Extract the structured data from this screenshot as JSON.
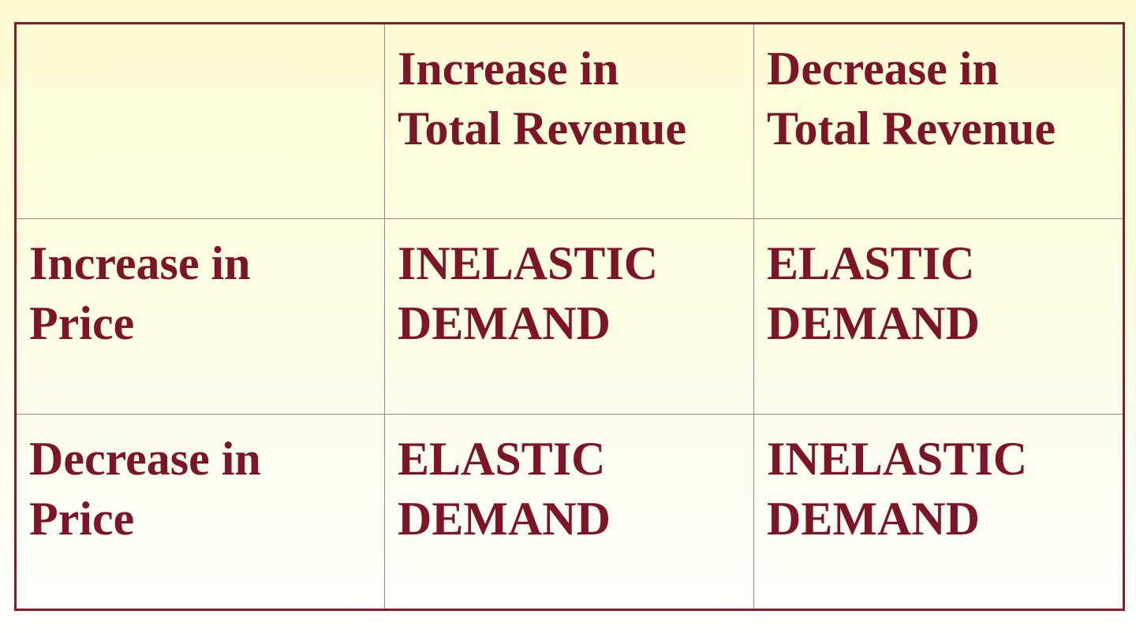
{
  "table": {
    "header": {
      "corner": "",
      "col1": "Increase in\nTotal Revenue",
      "col2": "Decrease in\nTotal Revenue"
    },
    "rows": [
      {
        "label": "Increase in\nPrice",
        "col1": "INELASTIC\nDEMAND",
        "col2": "ELASTIC\nDEMAND"
      },
      {
        "label": "Decrease in\nPrice",
        "col1": "ELASTIC\nDEMAND",
        "col2": "INELASTIC\nDEMAND"
      }
    ]
  },
  "colors": {
    "text": "#7d1526",
    "border": "#8b1a2a",
    "background": "#fefce0"
  }
}
